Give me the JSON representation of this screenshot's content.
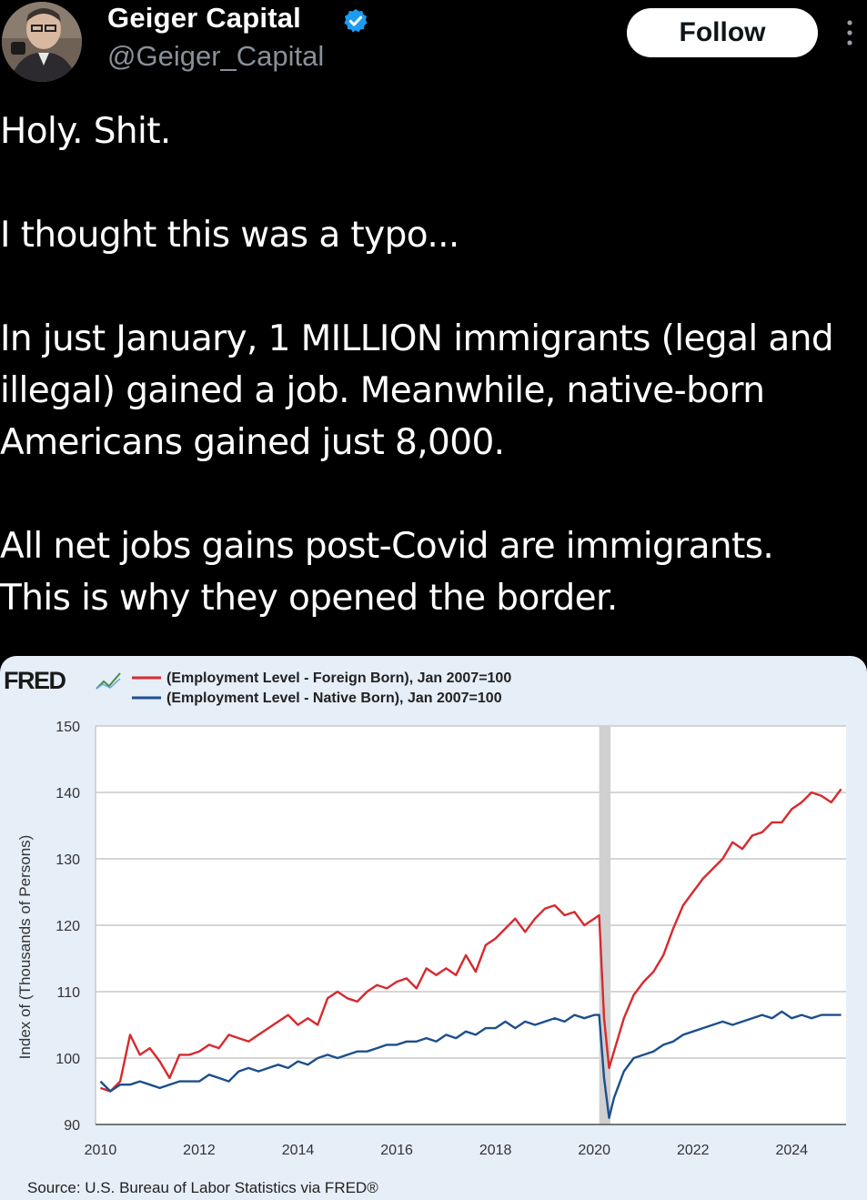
{
  "author": {
    "name": "Geiger Capital",
    "handle": "@Geiger_Capital",
    "verified_icon": "verified-badge-icon",
    "follow_label": "Follow",
    "more_icon": "more-options-icon"
  },
  "tweet": {
    "lines": [
      "Holy. Shit.",
      "",
      "I thought this was a typo...",
      "",
      "In just January, 1 MILLION immigrants (legal and",
      "illegal) gained a job. Meanwhile, native-born",
      "Americans gained just 8,000.",
      "",
      "All net jobs gains post-Covid are immigrants.",
      "This is why they opened the border."
    ]
  },
  "chart_data": {
    "type": "line",
    "logo": "FRED",
    "ylabel": "Index of (Thousands of Persons)",
    "xlim": [
      2009.9,
      2025.1
    ],
    "ylim": [
      90,
      150
    ],
    "yticks": [
      90,
      100,
      110,
      120,
      130,
      140,
      150
    ],
    "xticks": [
      2010,
      2012,
      2014,
      2016,
      2018,
      2020,
      2022,
      2024
    ],
    "recession_band": [
      2020.1,
      2020.33
    ],
    "grid": true,
    "legend_position": "top-left",
    "source": "Source: U.S. Bureau of Labor Statistics via FRED®",
    "series": [
      {
        "name": "(Employment Level - Foreign Born), Jan 2007=100",
        "color": "#d62a2e",
        "points": [
          [
            2010.0,
            95.5
          ],
          [
            2010.2,
            95.0
          ],
          [
            2010.4,
            96.5
          ],
          [
            2010.6,
            103.5
          ],
          [
            2010.8,
            100.5
          ],
          [
            2011.0,
            101.5
          ],
          [
            2011.2,
            99.5
          ],
          [
            2011.4,
            97.0
          ],
          [
            2011.6,
            100.5
          ],
          [
            2011.8,
            100.5
          ],
          [
            2012.0,
            101.0
          ],
          [
            2012.2,
            102.0
          ],
          [
            2012.4,
            101.5
          ],
          [
            2012.6,
            103.5
          ],
          [
            2012.8,
            103.0
          ],
          [
            2013.0,
            102.5
          ],
          [
            2013.2,
            103.5
          ],
          [
            2013.4,
            104.5
          ],
          [
            2013.6,
            105.5
          ],
          [
            2013.8,
            106.5
          ],
          [
            2014.0,
            105.0
          ],
          [
            2014.2,
            106.0
          ],
          [
            2014.4,
            105.0
          ],
          [
            2014.6,
            109.0
          ],
          [
            2014.8,
            110.0
          ],
          [
            2015.0,
            109.0
          ],
          [
            2015.2,
            108.5
          ],
          [
            2015.4,
            110.0
          ],
          [
            2015.6,
            111.0
          ],
          [
            2015.8,
            110.5
          ],
          [
            2016.0,
            111.5
          ],
          [
            2016.2,
            112.0
          ],
          [
            2016.4,
            110.5
          ],
          [
            2016.6,
            113.5
          ],
          [
            2016.8,
            112.5
          ],
          [
            2017.0,
            113.5
          ],
          [
            2017.2,
            112.5
          ],
          [
            2017.4,
            115.5
          ],
          [
            2017.6,
            113.0
          ],
          [
            2017.8,
            117.0
          ],
          [
            2018.0,
            118.0
          ],
          [
            2018.2,
            119.5
          ],
          [
            2018.4,
            121.0
          ],
          [
            2018.6,
            119.0
          ],
          [
            2018.8,
            121.0
          ],
          [
            2019.0,
            122.5
          ],
          [
            2019.2,
            123.0
          ],
          [
            2019.4,
            121.5
          ],
          [
            2019.6,
            122.0
          ],
          [
            2019.8,
            120.0
          ],
          [
            2020.0,
            121.0
          ],
          [
            2020.1,
            121.5
          ],
          [
            2020.2,
            106.0
          ],
          [
            2020.3,
            98.5
          ],
          [
            2020.4,
            101.0
          ],
          [
            2020.6,
            106.0
          ],
          [
            2020.8,
            109.5
          ],
          [
            2021.0,
            111.5
          ],
          [
            2021.2,
            113.0
          ],
          [
            2021.4,
            115.5
          ],
          [
            2021.6,
            119.5
          ],
          [
            2021.8,
            123.0
          ],
          [
            2022.0,
            125.0
          ],
          [
            2022.2,
            127.0
          ],
          [
            2022.4,
            128.5
          ],
          [
            2022.6,
            130.0
          ],
          [
            2022.8,
            132.5
          ],
          [
            2023.0,
            131.5
          ],
          [
            2023.2,
            133.5
          ],
          [
            2023.4,
            134.0
          ],
          [
            2023.6,
            135.5
          ],
          [
            2023.8,
            135.5
          ],
          [
            2024.0,
            137.5
          ],
          [
            2024.2,
            138.5
          ],
          [
            2024.4,
            140.0
          ],
          [
            2024.6,
            139.5
          ],
          [
            2024.8,
            138.5
          ],
          [
            2025.0,
            140.5
          ]
        ]
      },
      {
        "name": "(Employment Level - Native Born), Jan 2007=100",
        "color": "#1d4f8c",
        "points": [
          [
            2010.0,
            96.5
          ],
          [
            2010.2,
            95.0
          ],
          [
            2010.4,
            96.0
          ],
          [
            2010.6,
            96.0
          ],
          [
            2010.8,
            96.5
          ],
          [
            2011.0,
            96.0
          ],
          [
            2011.2,
            95.5
          ],
          [
            2011.4,
            96.0
          ],
          [
            2011.6,
            96.5
          ],
          [
            2011.8,
            96.5
          ],
          [
            2012.0,
            96.5
          ],
          [
            2012.2,
            97.5
          ],
          [
            2012.4,
            97.0
          ],
          [
            2012.6,
            96.5
          ],
          [
            2012.8,
            98.0
          ],
          [
            2013.0,
            98.5
          ],
          [
            2013.2,
            98.0
          ],
          [
            2013.4,
            98.5
          ],
          [
            2013.6,
            99.0
          ],
          [
            2013.8,
            98.5
          ],
          [
            2014.0,
            99.5
          ],
          [
            2014.2,
            99.0
          ],
          [
            2014.4,
            100.0
          ],
          [
            2014.6,
            100.5
          ],
          [
            2014.8,
            100.0
          ],
          [
            2015.0,
            100.5
          ],
          [
            2015.2,
            101.0
          ],
          [
            2015.4,
            101.0
          ],
          [
            2015.6,
            101.5
          ],
          [
            2015.8,
            102.0
          ],
          [
            2016.0,
            102.0
          ],
          [
            2016.2,
            102.5
          ],
          [
            2016.4,
            102.5
          ],
          [
            2016.6,
            103.0
          ],
          [
            2016.8,
            102.5
          ],
          [
            2017.0,
            103.5
          ],
          [
            2017.2,
            103.0
          ],
          [
            2017.4,
            104.0
          ],
          [
            2017.6,
            103.5
          ],
          [
            2017.8,
            104.5
          ],
          [
            2018.0,
            104.5
          ],
          [
            2018.2,
            105.5
          ],
          [
            2018.4,
            104.5
          ],
          [
            2018.6,
            105.5
          ],
          [
            2018.8,
            105.0
          ],
          [
            2019.0,
            105.5
          ],
          [
            2019.2,
            106.0
          ],
          [
            2019.4,
            105.5
          ],
          [
            2019.6,
            106.5
          ],
          [
            2019.8,
            106.0
          ],
          [
            2020.0,
            106.5
          ],
          [
            2020.1,
            106.5
          ],
          [
            2020.2,
            97.0
          ],
          [
            2020.3,
            91.0
          ],
          [
            2020.4,
            94.0
          ],
          [
            2020.6,
            98.0
          ],
          [
            2020.8,
            100.0
          ],
          [
            2021.0,
            100.5
          ],
          [
            2021.2,
            101.0
          ],
          [
            2021.4,
            102.0
          ],
          [
            2021.6,
            102.5
          ],
          [
            2021.8,
            103.5
          ],
          [
            2022.0,
            104.0
          ],
          [
            2022.2,
            104.5
          ],
          [
            2022.4,
            105.0
          ],
          [
            2022.6,
            105.5
          ],
          [
            2022.8,
            105.0
          ],
          [
            2023.0,
            105.5
          ],
          [
            2023.2,
            106.0
          ],
          [
            2023.4,
            106.5
          ],
          [
            2023.6,
            106.0
          ],
          [
            2023.8,
            107.0
          ],
          [
            2024.0,
            106.0
          ],
          [
            2024.2,
            106.5
          ],
          [
            2024.4,
            106.0
          ],
          [
            2024.6,
            106.5
          ],
          [
            2024.8,
            106.5
          ],
          [
            2025.0,
            106.5
          ]
        ]
      }
    ]
  }
}
